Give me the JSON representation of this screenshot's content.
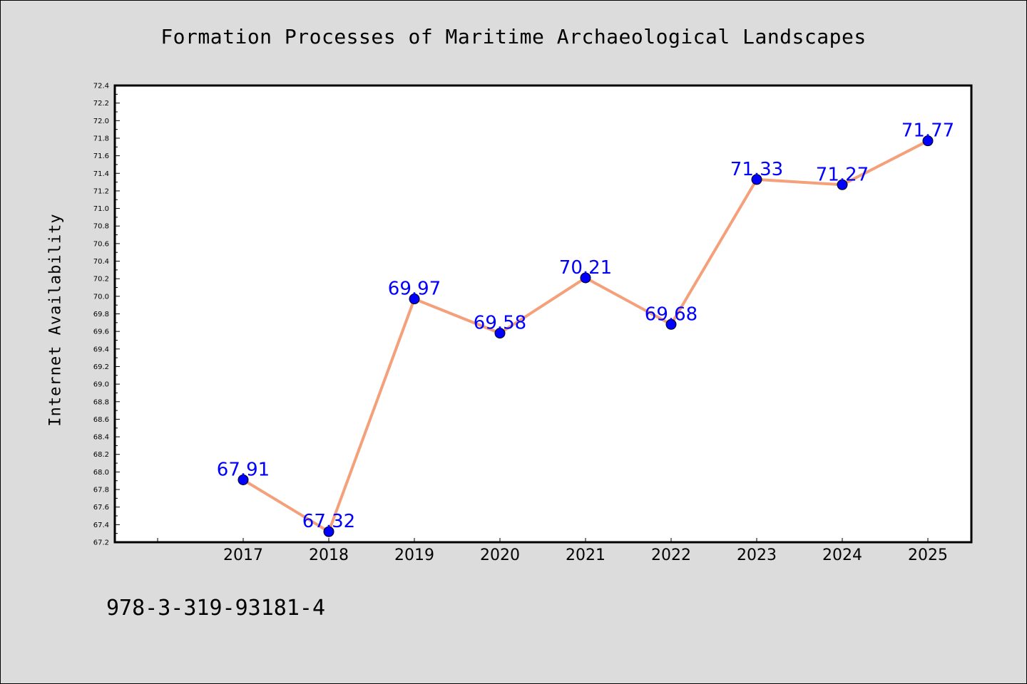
{
  "chart_data": {
    "type": "line",
    "title": "Formation Processes of Maritime Archaeological Landscapes",
    "xlabel": "",
    "ylabel": "Internet Availability",
    "categories": [
      "2017",
      "2018",
      "2019",
      "2020",
      "2021",
      "2022",
      "2023",
      "2024",
      "2025"
    ],
    "series": [
      {
        "values": [
          67.91,
          67.32,
          69.97,
          69.58,
          70.21,
          69.68,
          71.33,
          71.27,
          71.77
        ],
        "labels": [
          "67.91",
          "67.32",
          "69.97",
          "69.58",
          "70.21",
          "69.68",
          "71.33",
          "71.27",
          "71.77"
        ],
        "line_color": "#f4a07a",
        "marker_color": "#0000ff",
        "label_color": "#0000ff"
      }
    ],
    "ylim": [
      67.2,
      72.4
    ],
    "yticks": [
      "67.2",
      "67.4",
      "67.6",
      "67.8",
      "68.0",
      "68.2",
      "68.4",
      "68.6",
      "68.8",
      "69.0",
      "69.2",
      "69.4",
      "69.6",
      "69.8",
      "70.0",
      "70.2",
      "70.4",
      "70.6",
      "70.8",
      "71.0",
      "71.2",
      "71.4",
      "71.6",
      "71.8",
      "72.0",
      "72.2",
      "72.4"
    ],
    "grid": false,
    "legend": "none"
  },
  "footer_note": "978-3-319-93181-4",
  "colors": {
    "background": "#dcdcdc",
    "plot_area": "#ffffff"
  }
}
